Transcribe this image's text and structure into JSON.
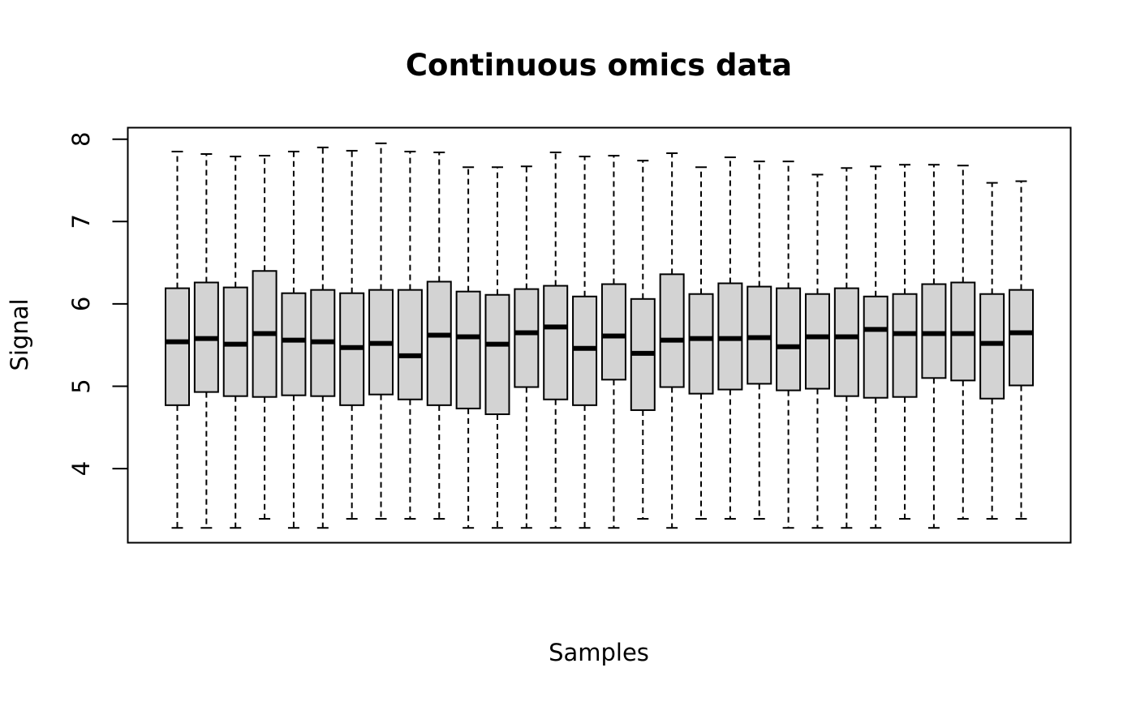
{
  "chart_data": {
    "type": "boxplot",
    "title": "Continuous omics data",
    "xlabel": "Samples",
    "ylabel": "Signal",
    "ylim": [
      3.1,
      8.14
    ],
    "yticks": [
      4,
      5,
      6,
      7,
      8
    ],
    "show_x_ticks": false,
    "grid": false,
    "legend": "none",
    "box_fill": "#d3d3d3",
    "line_color": "#000000",
    "boxes": [
      {
        "whisker_low": 3.28,
        "q1": 4.77,
        "median": 5.54,
        "q3": 6.19,
        "whisker_high": 7.85
      },
      {
        "whisker_low": 3.28,
        "q1": 4.93,
        "median": 5.58,
        "q3": 6.26,
        "whisker_high": 7.82
      },
      {
        "whisker_low": 3.28,
        "q1": 4.88,
        "median": 5.51,
        "q3": 6.2,
        "whisker_high": 7.79
      },
      {
        "whisker_low": 3.39,
        "q1": 4.87,
        "median": 5.64,
        "q3": 6.4,
        "whisker_high": 7.8
      },
      {
        "whisker_low": 3.28,
        "q1": 4.89,
        "median": 5.56,
        "q3": 6.13,
        "whisker_high": 7.85
      },
      {
        "whisker_low": 3.28,
        "q1": 4.88,
        "median": 5.54,
        "q3": 6.17,
        "whisker_high": 7.9
      },
      {
        "whisker_low": 3.39,
        "q1": 4.77,
        "median": 5.47,
        "q3": 6.13,
        "whisker_high": 7.86
      },
      {
        "whisker_low": 3.39,
        "q1": 4.9,
        "median": 5.52,
        "q3": 6.17,
        "whisker_high": 7.95
      },
      {
        "whisker_low": 3.39,
        "q1": 4.84,
        "median": 5.37,
        "q3": 6.17,
        "whisker_high": 7.85
      },
      {
        "whisker_low": 3.39,
        "q1": 4.77,
        "median": 5.62,
        "q3": 6.27,
        "whisker_high": 7.84
      },
      {
        "whisker_low": 3.28,
        "q1": 4.73,
        "median": 5.6,
        "q3": 6.15,
        "whisker_high": 7.66
      },
      {
        "whisker_low": 3.28,
        "q1": 4.66,
        "median": 5.51,
        "q3": 6.11,
        "whisker_high": 7.66
      },
      {
        "whisker_low": 3.28,
        "q1": 4.99,
        "median": 5.65,
        "q3": 6.18,
        "whisker_high": 7.67
      },
      {
        "whisker_low": 3.28,
        "q1": 4.84,
        "median": 5.72,
        "q3": 6.22,
        "whisker_high": 7.84
      },
      {
        "whisker_low": 3.28,
        "q1": 4.77,
        "median": 5.46,
        "q3": 6.09,
        "whisker_high": 7.79
      },
      {
        "whisker_low": 3.28,
        "q1": 5.08,
        "median": 5.61,
        "q3": 6.24,
        "whisker_high": 7.8
      },
      {
        "whisker_low": 3.39,
        "q1": 4.71,
        "median": 5.4,
        "q3": 6.06,
        "whisker_high": 7.74
      },
      {
        "whisker_low": 3.28,
        "q1": 4.99,
        "median": 5.56,
        "q3": 6.36,
        "whisker_high": 7.83
      },
      {
        "whisker_low": 3.39,
        "q1": 4.91,
        "median": 5.58,
        "q3": 6.12,
        "whisker_high": 7.66
      },
      {
        "whisker_low": 3.39,
        "q1": 4.96,
        "median": 5.58,
        "q3": 6.25,
        "whisker_high": 7.78
      },
      {
        "whisker_low": 3.39,
        "q1": 5.03,
        "median": 5.59,
        "q3": 6.21,
        "whisker_high": 7.73
      },
      {
        "whisker_low": 3.28,
        "q1": 4.95,
        "median": 5.48,
        "q3": 6.19,
        "whisker_high": 7.73
      },
      {
        "whisker_low": 3.28,
        "q1": 4.97,
        "median": 5.6,
        "q3": 6.12,
        "whisker_high": 7.57
      },
      {
        "whisker_low": 3.28,
        "q1": 4.88,
        "median": 5.6,
        "q3": 6.19,
        "whisker_high": 7.65
      },
      {
        "whisker_low": 3.28,
        "q1": 4.86,
        "median": 5.69,
        "q3": 6.09,
        "whisker_high": 7.67
      },
      {
        "whisker_low": 3.39,
        "q1": 4.87,
        "median": 5.64,
        "q3": 6.12,
        "whisker_high": 7.69
      },
      {
        "whisker_low": 3.28,
        "q1": 5.1,
        "median": 5.64,
        "q3": 6.24,
        "whisker_high": 7.69
      },
      {
        "whisker_low": 3.39,
        "q1": 5.07,
        "median": 5.64,
        "q3": 6.26,
        "whisker_high": 7.68
      },
      {
        "whisker_low": 3.39,
        "q1": 4.85,
        "median": 5.52,
        "q3": 6.12,
        "whisker_high": 7.47
      },
      {
        "whisker_low": 3.39,
        "q1": 5.01,
        "median": 5.65,
        "q3": 6.17,
        "whisker_high": 7.49
      }
    ]
  }
}
